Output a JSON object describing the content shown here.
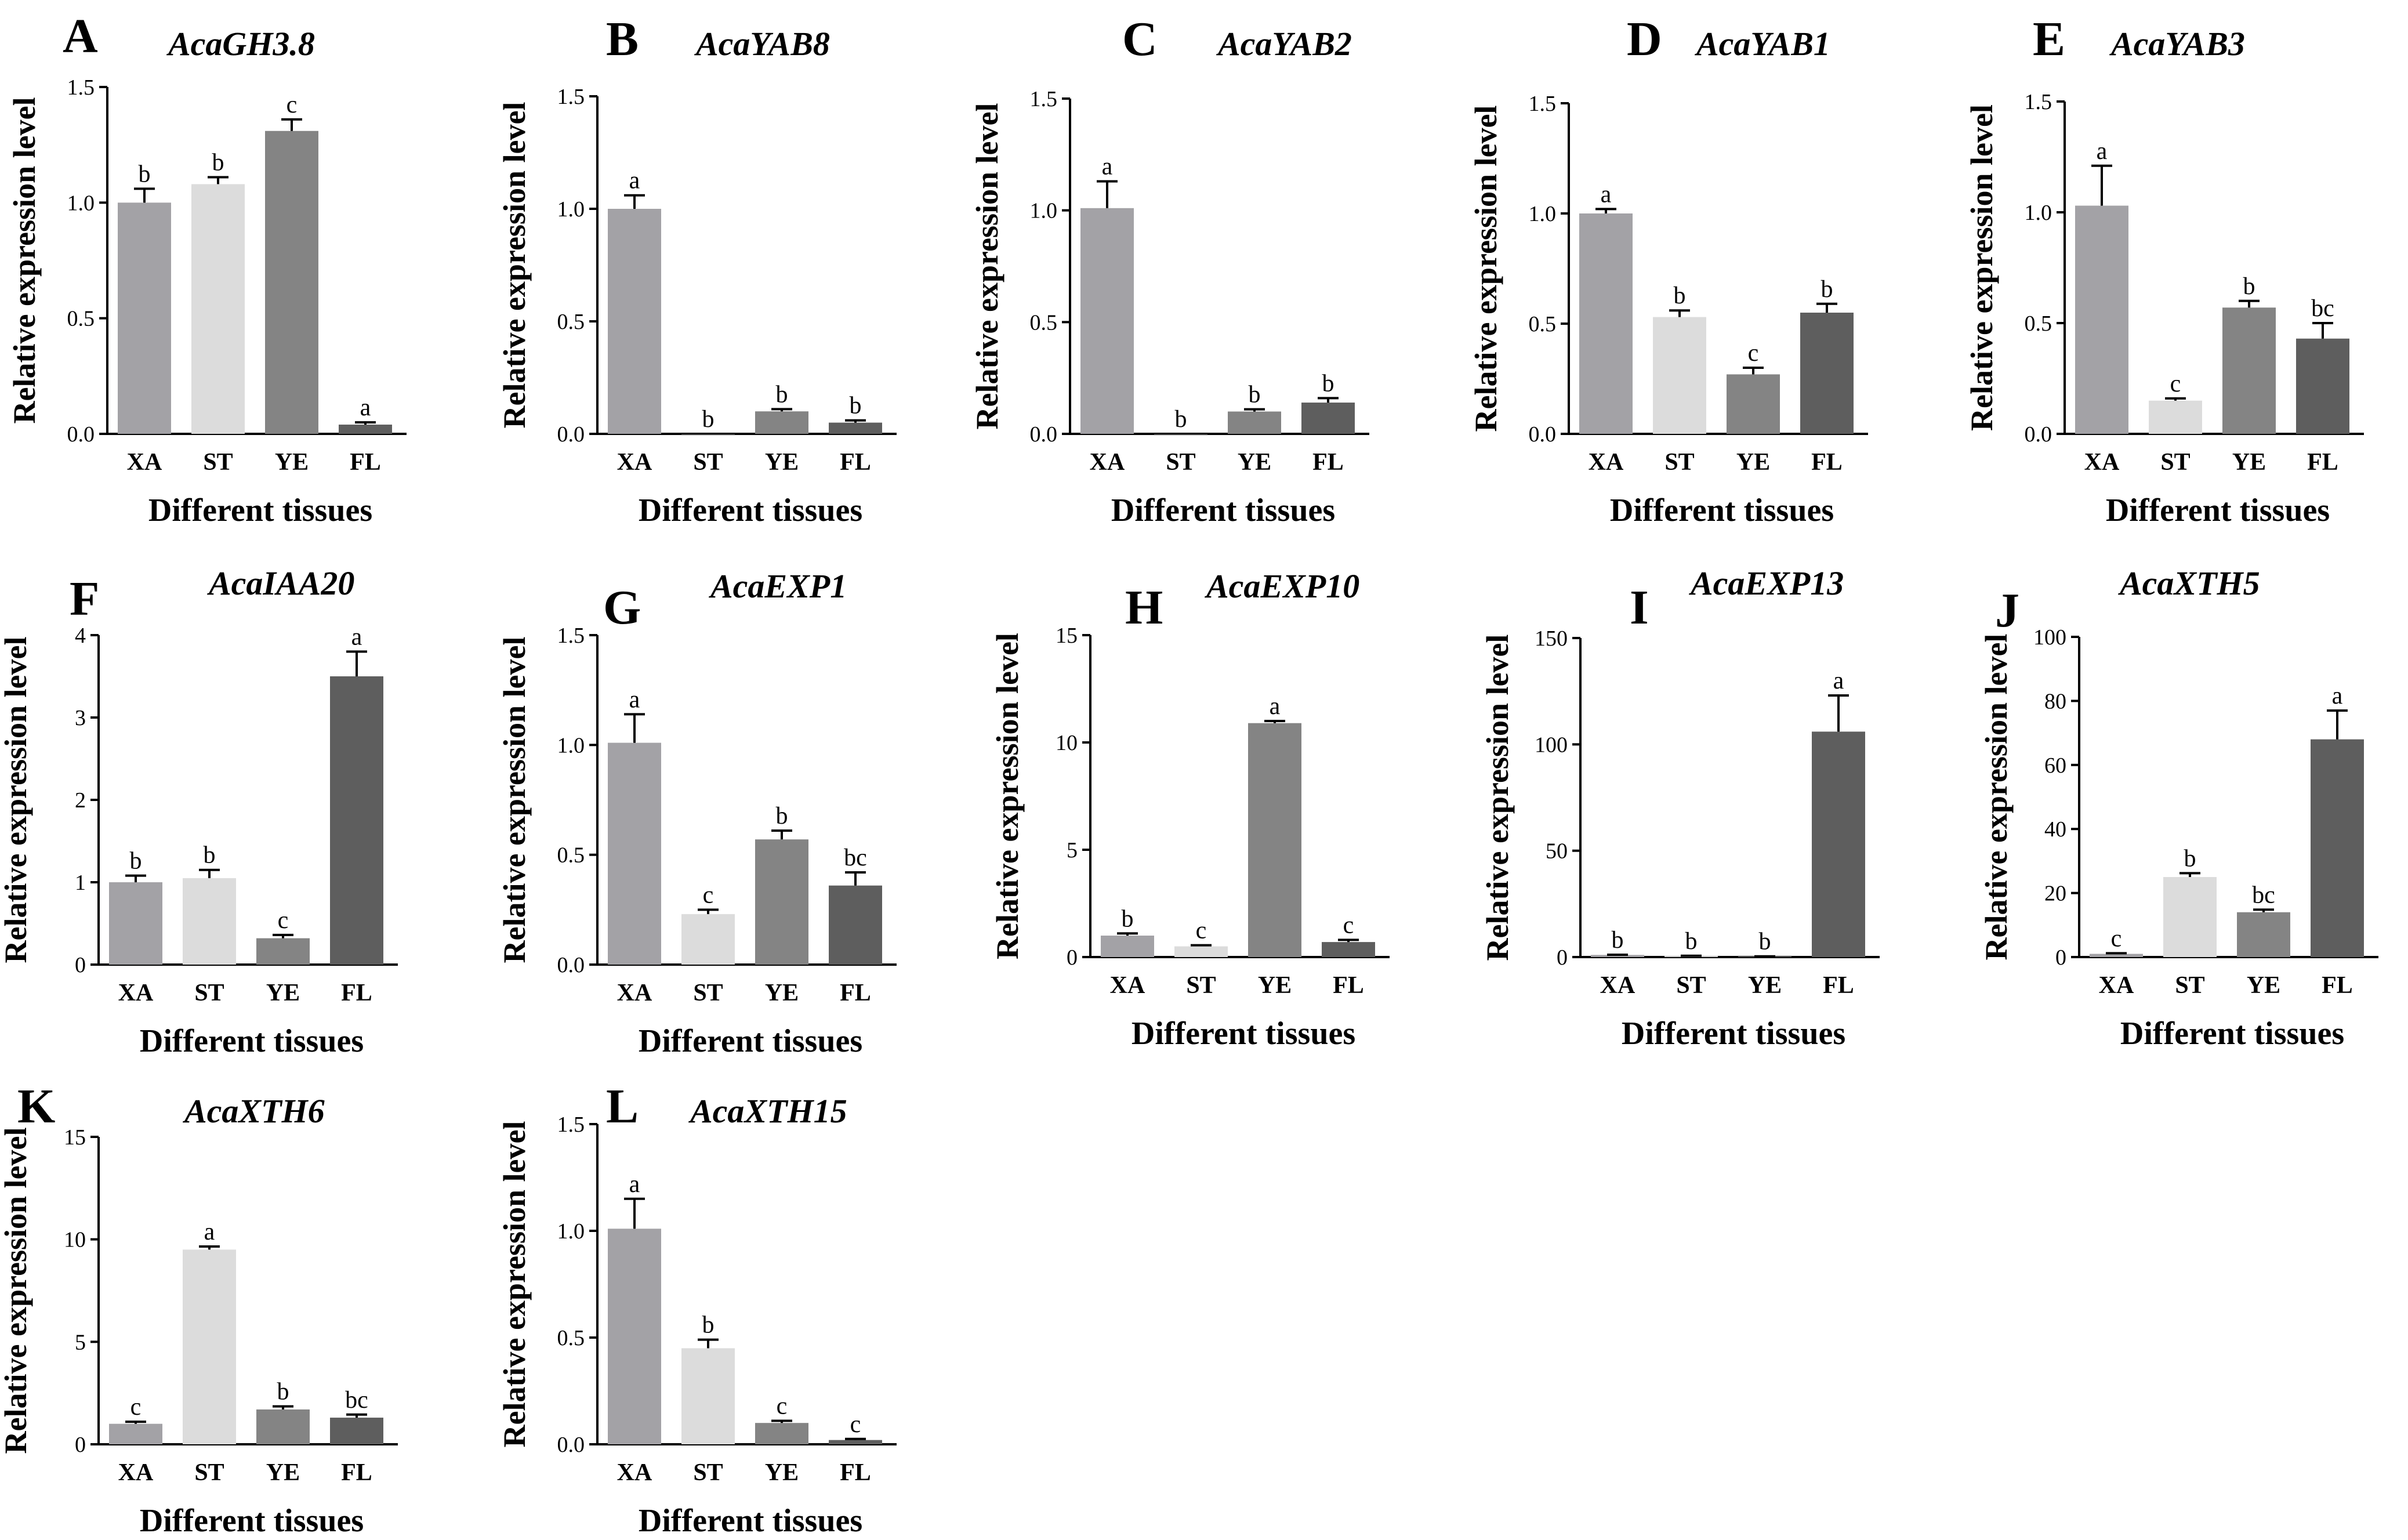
{
  "figure": {
    "ylabel": "Relative expression level",
    "xlabel": "Different tissues",
    "colors": [
      "#a3a2a6",
      "#dcdcdc",
      "#848484",
      "#5e5e5e"
    ]
  },
  "chart_data": [
    {
      "panel": "A",
      "title": "AcaGH3.8",
      "type": "bar",
      "ylabel": "Relative expression level",
      "xlabel": "Different tissues",
      "categories": [
        "XA",
        "ST",
        "YE",
        "FL"
      ],
      "values": [
        1.0,
        1.08,
        1.31,
        0.04
      ],
      "errors": [
        0.06,
        0.03,
        0.05,
        0.01
      ],
      "letters": [
        "b",
        "b",
        "c",
        "a"
      ],
      "ylim": [
        0,
        1.5
      ],
      "yticks": [
        "0.0",
        "0.5",
        "1.0",
        "1.5"
      ]
    },
    {
      "panel": "B",
      "title": "AcaYAB8",
      "type": "bar",
      "ylabel": "Relative expression level",
      "xlabel": "Different tissues",
      "categories": [
        "XA",
        "ST",
        "YE",
        "FL"
      ],
      "values": [
        1.0,
        0.0,
        0.1,
        0.05
      ],
      "errors": [
        0.06,
        0.0,
        0.01,
        0.01
      ],
      "letters": [
        "a",
        "b",
        "b",
        "b"
      ],
      "ylim": [
        0,
        1.5
      ],
      "yticks": [
        "0.0",
        "0.5",
        "1.0",
        "1.5"
      ]
    },
    {
      "panel": "C",
      "title": "AcaYAB2",
      "type": "bar",
      "ylabel": "Relative expression level",
      "xlabel": "Different tissues",
      "categories": [
        "XA",
        "ST",
        "YE",
        "FL"
      ],
      "values": [
        1.01,
        0.0,
        0.1,
        0.14
      ],
      "errors": [
        0.12,
        0.0,
        0.01,
        0.02
      ],
      "letters": [
        "a",
        "b",
        "b",
        "b"
      ],
      "ylim": [
        0,
        1.5
      ],
      "yticks": [
        "0.0",
        "0.5",
        "1.0",
        "1.5"
      ]
    },
    {
      "panel": "D",
      "title": "AcaYAB1",
      "type": "bar",
      "ylabel": "Relative expression level",
      "xlabel": "Different tissues",
      "categories": [
        "XA",
        "ST",
        "YE",
        "FL"
      ],
      "values": [
        1.0,
        0.53,
        0.27,
        0.55
      ],
      "errors": [
        0.02,
        0.03,
        0.03,
        0.04
      ],
      "letters": [
        "a",
        "b",
        "c",
        "b"
      ],
      "ylim": [
        0,
        1.5
      ],
      "yticks": [
        "0.0",
        "0.5",
        "1.0",
        "1.5"
      ]
    },
    {
      "panel": "E",
      "title": "AcaYAB3",
      "type": "bar",
      "ylabel": "Relative expression level",
      "xlabel": "Different tissues",
      "categories": [
        "XA",
        "ST",
        "YE",
        "FL"
      ],
      "values": [
        1.03,
        0.15,
        0.57,
        0.43
      ],
      "errors": [
        0.18,
        0.01,
        0.03,
        0.07
      ],
      "letters": [
        "a",
        "c",
        "b",
        "bc"
      ],
      "ylim": [
        0,
        1.5
      ],
      "yticks": [
        "0.0",
        "0.5",
        "1.0",
        "1.5"
      ]
    },
    {
      "panel": "F",
      "title": "AcaIAA20",
      "type": "bar",
      "ylabel": "Relative expression level",
      "xlabel": "Different tissues",
      "categories": [
        "XA",
        "ST",
        "YE",
        "FL"
      ],
      "values": [
        1.0,
        1.05,
        0.32,
        3.5
      ],
      "errors": [
        0.08,
        0.1,
        0.04,
        0.3
      ],
      "letters": [
        "b",
        "b",
        "c",
        "a"
      ],
      "ylim": [
        0,
        4
      ],
      "yticks": [
        "0",
        "1",
        "2",
        "3",
        "4"
      ]
    },
    {
      "panel": "G",
      "title": "AcaEXP1",
      "type": "bar",
      "ylabel": "Relative expression level",
      "xlabel": "Different tissues",
      "categories": [
        "XA",
        "ST",
        "YE",
        "FL"
      ],
      "values": [
        1.01,
        0.23,
        0.57,
        0.36
      ],
      "errors": [
        0.13,
        0.02,
        0.04,
        0.06
      ],
      "letters": [
        "a",
        "c",
        "b",
        "bc"
      ],
      "ylim": [
        0,
        1.5
      ],
      "yticks": [
        "0.0",
        "0.5",
        "1.0",
        "1.5"
      ]
    },
    {
      "panel": "H",
      "title": "AcaEXP10",
      "type": "bar",
      "ylabel": "Relative expression level",
      "xlabel": "Different tissues",
      "categories": [
        "XA",
        "ST",
        "YE",
        "FL"
      ],
      "values": [
        1.0,
        0.5,
        10.9,
        0.7
      ],
      "errors": [
        0.1,
        0.05,
        0.1,
        0.1
      ],
      "letters": [
        "b",
        "c",
        "a",
        "c"
      ],
      "ylim": [
        0,
        15
      ],
      "yticks": [
        "0",
        "5",
        "10",
        "15"
      ]
    },
    {
      "panel": "I",
      "title": "AcaEXP13",
      "type": "bar",
      "ylabel": "Relative expression level",
      "xlabel": "Different tissues",
      "categories": [
        "XA",
        "ST",
        "YE",
        "FL"
      ],
      "values": [
        1.0,
        0.5,
        0.3,
        106
      ],
      "errors": [
        0.1,
        0.1,
        0.05,
        17
      ],
      "letters": [
        "b",
        "b",
        "b",
        "a"
      ],
      "ylim": [
        0,
        150
      ],
      "yticks": [
        "0",
        "50",
        "100",
        "150"
      ]
    },
    {
      "panel": "J",
      "title": "AcaXTH5",
      "type": "bar",
      "ylabel": "Relative expression level",
      "xlabel": "Different tissues",
      "categories": [
        "XA",
        "ST",
        "YE",
        "FL"
      ],
      "values": [
        1.0,
        25,
        14,
        68
      ],
      "errors": [
        0.2,
        1.2,
        0.8,
        9
      ],
      "letters": [
        "c",
        "b",
        "bc",
        "a"
      ],
      "ylim": [
        0,
        100
      ],
      "yticks": [
        "0",
        "20",
        "40",
        "60",
        "80",
        "100"
      ]
    },
    {
      "panel": "K",
      "title": "AcaXTH6",
      "type": "bar",
      "ylabel": "Relative expression level",
      "xlabel": "Different tissues",
      "categories": [
        "XA",
        "ST",
        "YE",
        "FL"
      ],
      "values": [
        1.0,
        9.5,
        1.7,
        1.3
      ],
      "errors": [
        0.1,
        0.15,
        0.15,
        0.15
      ],
      "letters": [
        "c",
        "a",
        "b",
        "bc"
      ],
      "ylim": [
        0,
        15
      ],
      "yticks": [
        "0",
        "5",
        "10",
        "15"
      ]
    },
    {
      "panel": "L",
      "title": "AcaXTH15",
      "type": "bar",
      "ylabel": "Relative expression level",
      "xlabel": "Different tissues",
      "categories": [
        "XA",
        "ST",
        "YE",
        "FL"
      ],
      "values": [
        1.01,
        0.45,
        0.1,
        0.02
      ],
      "errors": [
        0.14,
        0.04,
        0.01,
        0.005
      ],
      "letters": [
        "a",
        "b",
        "c",
        "c"
      ],
      "ylim": [
        0,
        1.5
      ],
      "yticks": [
        "0.0",
        "0.5",
        "1.0",
        "1.5"
      ]
    }
  ]
}
